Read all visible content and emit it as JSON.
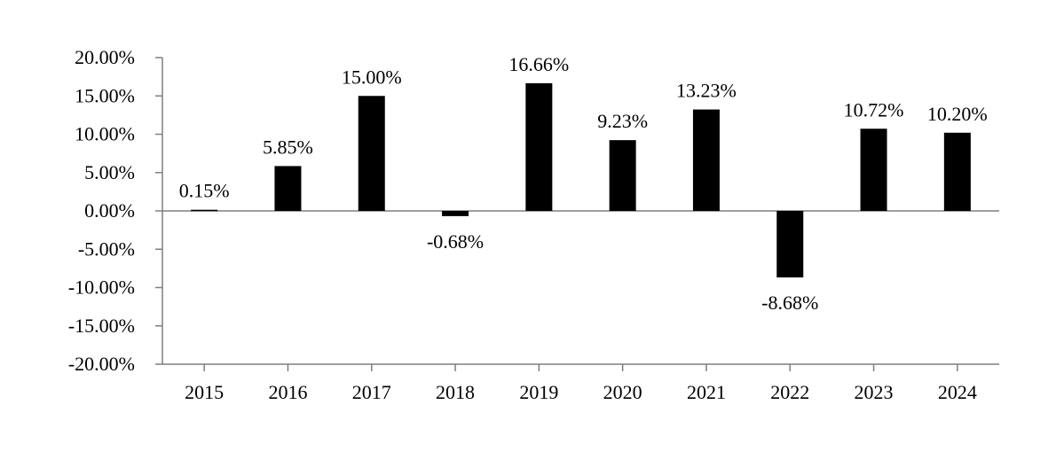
{
  "chart_data": {
    "type": "bar",
    "title": "",
    "xlabel": "",
    "ylabel": "",
    "categories": [
      "2015",
      "2016",
      "2017",
      "2018",
      "2019",
      "2020",
      "2021",
      "2022",
      "2023",
      "2024"
    ],
    "values": [
      0.15,
      5.85,
      15.0,
      -0.68,
      16.66,
      9.23,
      13.23,
      -8.68,
      10.72,
      10.2
    ],
    "value_labels": [
      "0.15%",
      "5.85%",
      "15.00%",
      "-0.68%",
      "16.66%",
      "9.23%",
      "13.23%",
      "-8.68%",
      "10.72%",
      "10.20%"
    ],
    "ylim": [
      -20,
      20
    ],
    "yticks": [
      20,
      15,
      10,
      5,
      0,
      -5,
      -10,
      -15,
      -20
    ],
    "ytick_labels": [
      "20.00%",
      "15.00%",
      "10.00%",
      "5.00%",
      "0.00%",
      "-5.00%",
      "-10.00%",
      "-15.00%",
      "-20.00%"
    ],
    "grid": false,
    "legend": "none",
    "bar_color": "#000000",
    "axis_color": "#7f7f7f"
  }
}
